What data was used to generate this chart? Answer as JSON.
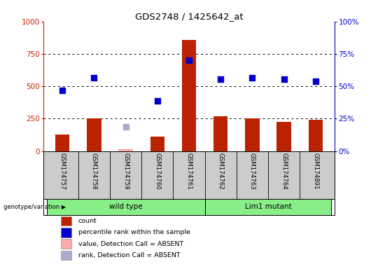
{
  "title": "GDS2748 / 1425642_at",
  "samples": [
    "GSM174757",
    "GSM174758",
    "GSM174759",
    "GSM174760",
    "GSM174761",
    "GSM174762",
    "GSM174763",
    "GSM174764",
    "GSM174891"
  ],
  "bar_values": [
    130,
    255,
    15,
    110,
    860,
    270,
    255,
    225,
    240
  ],
  "bar_absent": [
    false,
    false,
    true,
    false,
    false,
    false,
    false,
    false,
    false
  ],
  "percentile_values": [
    470,
    565,
    null,
    385,
    700,
    555,
    565,
    555,
    540
  ],
  "percentile_absent": [
    false,
    false,
    false,
    false,
    false,
    false,
    false,
    false,
    false
  ],
  "absent_rank_value": 185,
  "absent_rank_sample_idx": 2,
  "bar_color_present": "#bb2200",
  "bar_color_absent": "#ffaaaa",
  "dot_color_present": "#0000cc",
  "dot_color_absent": "#aaaacc",
  "group_defs": [
    {
      "label": "wild type",
      "start": 0,
      "end": 4,
      "color": "#88ee88"
    },
    {
      "label": "Lim1 mutant",
      "start": 5,
      "end": 8,
      "color": "#88ee88"
    }
  ],
  "ylim_left": [
    0,
    1000
  ],
  "ylim_right": [
    0,
    100
  ],
  "yticks_left": [
    0,
    250,
    500,
    750,
    1000
  ],
  "ytick_labels_left": [
    "0",
    "250",
    "500",
    "750",
    "1000"
  ],
  "yticks_right": [
    0,
    25,
    50,
    75,
    100
  ],
  "ytick_labels_right": [
    "0%",
    "25%",
    "50%",
    "75%",
    "100%"
  ],
  "left_ycolor": "#cc2200",
  "right_ycolor": "#0000cc",
  "bg_xlabels": "#cccccc",
  "legend_items": [
    {
      "label": "count",
      "color": "#bb2200"
    },
    {
      "label": "percentile rank within the sample",
      "color": "#0000cc"
    },
    {
      "label": "value, Detection Call = ABSENT",
      "color": "#ffaaaa"
    },
    {
      "label": "rank, Detection Call = ABSENT",
      "color": "#aaaacc"
    }
  ]
}
